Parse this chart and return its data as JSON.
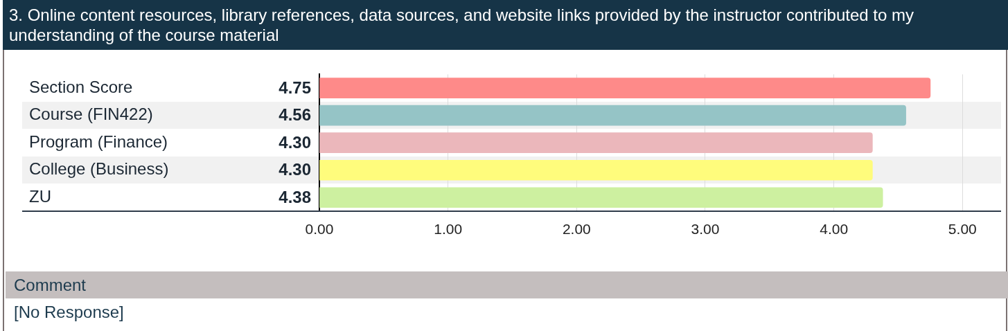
{
  "chart_data": {
    "type": "bar",
    "orientation": "horizontal",
    "title": "3. Online content resources, library references, data sources, and website links provided by the instructor contributed to my understanding of the course material",
    "categories": [
      "Section Score",
      "Course (FIN422)",
      "Program (Finance)",
      "College (Business)",
      "ZU"
    ],
    "values": [
      4.75,
      4.56,
      4.3,
      4.3,
      4.38
    ],
    "value_labels": [
      "4.75",
      "4.56",
      "4.30",
      "4.30",
      "4.38"
    ],
    "colors": [
      "#fe8a89",
      "#95c4c6",
      "#ebb7bb",
      "#fffc7c",
      "#cdf0a0"
    ],
    "xlim": [
      0,
      5.3
    ],
    "xticks": [
      {
        "value": 0,
        "label": "0.00"
      },
      {
        "value": 1,
        "label": "1.00"
      },
      {
        "value": 2,
        "label": "2.00"
      },
      {
        "value": 3,
        "label": "3.00"
      },
      {
        "value": 4,
        "label": "4.00"
      },
      {
        "value": 5,
        "label": "5.00"
      }
    ],
    "grid": "x",
    "annotations": [
      "Comment",
      "[No Response]"
    ]
  }
}
